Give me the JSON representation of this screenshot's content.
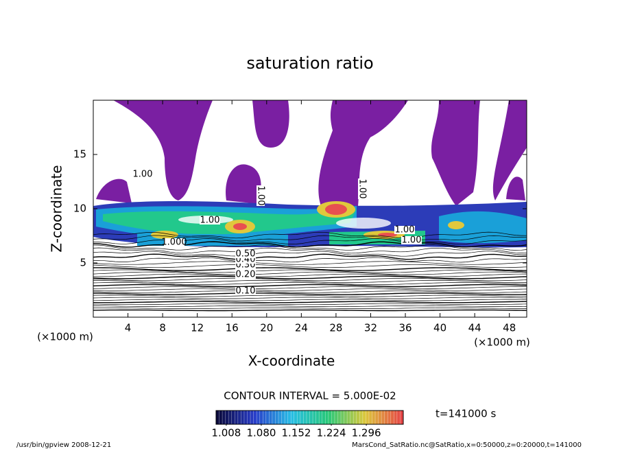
{
  "chart_data": {
    "type": "contour",
    "title": "saturation ratio",
    "xlabel": "X-coordinate",
    "ylabel": "Z-coordinate",
    "x_unit": "(×1000 m)",
    "y_unit": "(×1000 m)",
    "xlim": [
      0,
      50
    ],
    "ylim": [
      0,
      20
    ],
    "xticks": [
      4,
      8,
      12,
      16,
      20,
      24,
      28,
      32,
      36,
      40,
      44,
      48
    ],
    "yticks": [
      5,
      10,
      15
    ],
    "contour_labels": [
      "1.00",
      "1.00",
      "1.00",
      "1.00",
      "1.000",
      "1.00",
      "1.00",
      "0.10",
      "0.20",
      "0.30",
      "0.40",
      "0.50"
    ],
    "contour_interval": "CONTOUR INTERVAL = 5.000E-02",
    "colorbar": {
      "lim": [
        0.987,
        1.372
      ],
      "ticks": [
        1.008,
        {
          "value": 1.08,
          "label": "1.080"
        },
        1.152,
        1.224,
        1.296
      ]
    },
    "time_label": "t=141000 s",
    "footer_left": "/usr/bin/gpview  2008-12-21",
    "footer_right": "MarsCond_SatRatio.nc@SatRatio,x=0:50000,z=0:20000,t=141000"
  }
}
